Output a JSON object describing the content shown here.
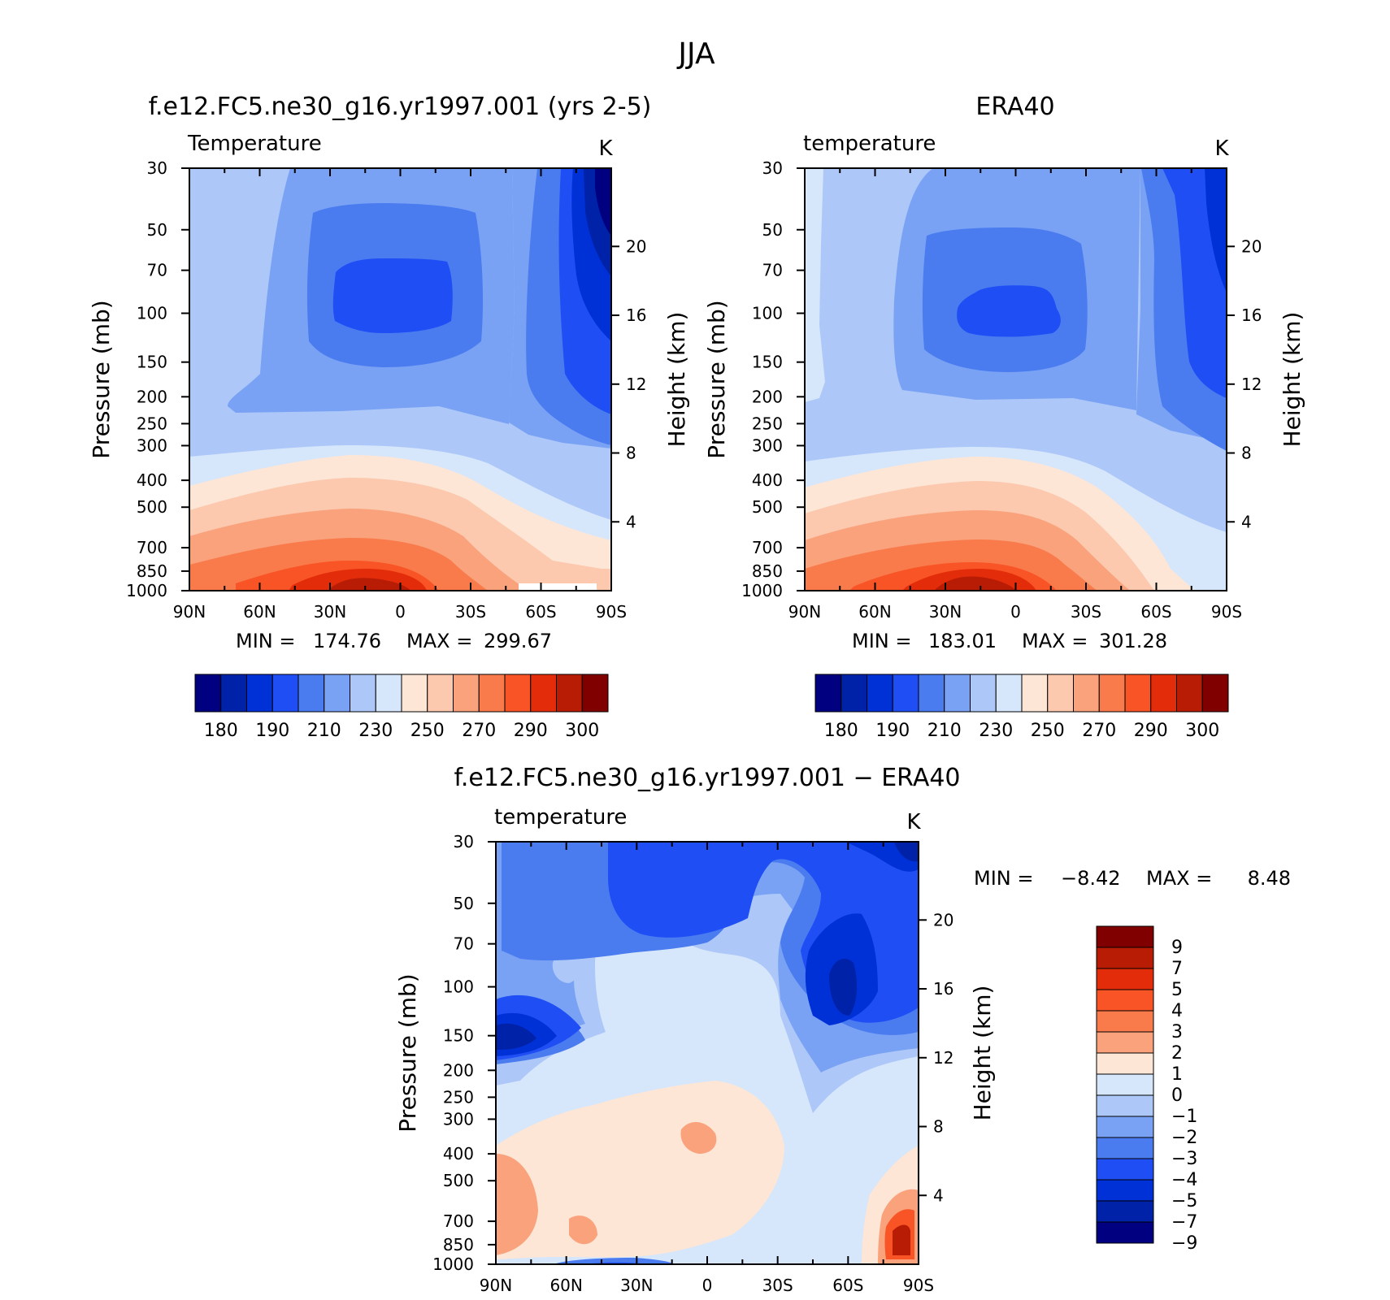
{
  "figure": {
    "title": "JJA"
  },
  "colors": {
    "abs_fills": [
      "#000080",
      "#0022a8",
      "#0031d6",
      "#1f4ff4",
      "#4a7cf0",
      "#7aa2f4",
      "#adc8f8",
      "#d6e6fb",
      "#fde6d6",
      "#fcc8ae",
      "#f9a27c",
      "#f97b4c",
      "#f85426",
      "#e32d0a",
      "#b81c05",
      "#800000"
    ],
    "diff_fills": [
      "#000080",
      "#0022a8",
      "#0031d6",
      "#1f4ff4",
      "#4a7cf0",
      "#7aa2f4",
      "#adc8f8",
      "#d6e6fb",
      "#fde6d6",
      "#f9a27c",
      "#f97b4c",
      "#f85426",
      "#e32d0a",
      "#b81c05",
      "#800000"
    ]
  },
  "chart_data": [
    {
      "id": "model",
      "type": "heatmap",
      "title": "f.e12.FC5.ne30_g16.yr1997.001 (yrs 2-5)",
      "left_label": "Temperature",
      "units": "K",
      "ylabel": "Pressure (mb)",
      "y2label": "Height (km)",
      "x_ticks": [
        "90N",
        "60N",
        "30N",
        "0",
        "30S",
        "60S",
        "90S"
      ],
      "y_ticks": [
        "30",
        "50",
        "70",
        "100",
        "150",
        "200",
        "250",
        "300",
        "400",
        "500",
        "700",
        "850",
        "1000"
      ],
      "y2_ticks": [
        "20",
        "16",
        "12",
        "8",
        "4"
      ],
      "stats": {
        "min_label": "MIN =",
        "min": "174.76",
        "max_label": "MAX =",
        "max": "299.67"
      },
      "levels": [
        180,
        185,
        190,
        200,
        210,
        220,
        230,
        240,
        250,
        260,
        270,
        280,
        290,
        295,
        300
      ],
      "colorbar_labels": [
        "180",
        "190",
        "210",
        "230",
        "250",
        "270",
        "290",
        "300"
      ]
    },
    {
      "id": "obs",
      "type": "heatmap",
      "title": "ERA40",
      "left_label": "temperature",
      "units": "K",
      "ylabel": "Pressure (mb)",
      "y2label": "Height (km)",
      "x_ticks": [
        "90N",
        "60N",
        "30N",
        "0",
        "30S",
        "60S",
        "90S"
      ],
      "y_ticks": [
        "30",
        "50",
        "70",
        "100",
        "150",
        "200",
        "250",
        "300",
        "400",
        "500",
        "700",
        "850",
        "1000"
      ],
      "y2_ticks": [
        "20",
        "16",
        "12",
        "8",
        "4"
      ],
      "stats": {
        "min_label": "MIN =",
        "min": "183.01",
        "max_label": "MAX =",
        "max": "301.28"
      },
      "levels": [
        180,
        185,
        190,
        200,
        210,
        220,
        230,
        240,
        250,
        260,
        270,
        280,
        290,
        295,
        300
      ],
      "colorbar_labels": [
        "180",
        "190",
        "210",
        "230",
        "250",
        "270",
        "290",
        "300"
      ]
    },
    {
      "id": "diff",
      "type": "heatmap",
      "title": "f.e12.FC5.ne30_g16.yr1997.001 − ERA40",
      "left_label": "temperature",
      "units": "K",
      "ylabel": "Pressure (mb)",
      "y2label": "Height (km)",
      "x_ticks": [
        "90N",
        "60N",
        "30N",
        "0",
        "30S",
        "60S",
        "90S"
      ],
      "y_ticks": [
        "30",
        "50",
        "70",
        "100",
        "150",
        "200",
        "250",
        "300",
        "400",
        "500",
        "700",
        "850",
        "1000"
      ],
      "y2_ticks": [
        "20",
        "16",
        "12",
        "8",
        "4"
      ],
      "stats": {
        "min_label": "MIN =",
        "min": "−8.42",
        "max_label": "MAX =",
        "max": "8.48"
      },
      "levels": [
        -9,
        -7,
        -5,
        -4,
        -3,
        -2,
        -1,
        0,
        1,
        2,
        3,
        4,
        5,
        7,
        9
      ],
      "colorbar_labels": [
        "9",
        "7",
        "5",
        "4",
        "3",
        "2",
        "1",
        "0",
        "−1",
        "−2",
        "−3",
        "−4",
        "−5",
        "−7",
        "−9"
      ]
    }
  ]
}
